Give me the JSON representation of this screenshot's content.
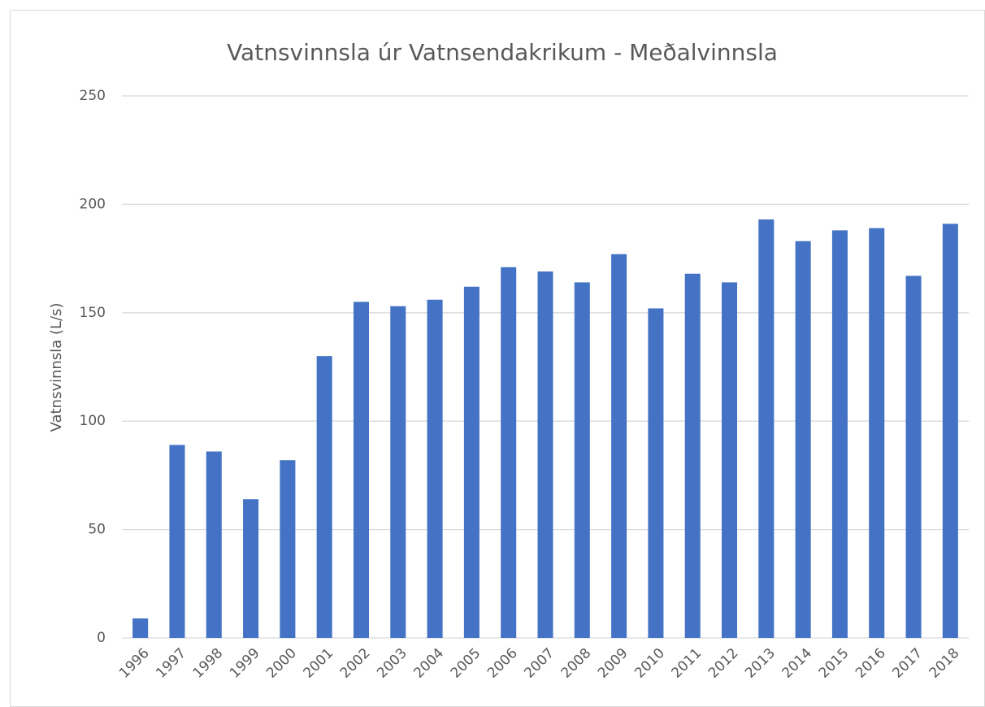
{
  "chart_data": {
    "type": "bar",
    "title": "Vatnsvinnsla úr Vatnsendakrikum - Meðalvinnsla",
    "y_label": "Vatnsvinnsla (L/s)",
    "categories": [
      "1996",
      "1997",
      "1998",
      "1999",
      "2000",
      "2001",
      "2002",
      "2003",
      "2004",
      "2005",
      "2006",
      "2007",
      "2008",
      "2009",
      "2010",
      "2011",
      "2012",
      "2013",
      "2014",
      "2015",
      "2016",
      "2017",
      "2018"
    ],
    "values": [
      9,
      89,
      86,
      64,
      82,
      130,
      155,
      153,
      156,
      162,
      171,
      169,
      164,
      177,
      152,
      168,
      164,
      193,
      183,
      188,
      189,
      167,
      191
    ],
    "color": "#4472c4",
    "ylim": [
      0,
      250
    ],
    "yticks": [
      0,
      50,
      100,
      150,
      200,
      250
    ],
    "grid": true
  }
}
